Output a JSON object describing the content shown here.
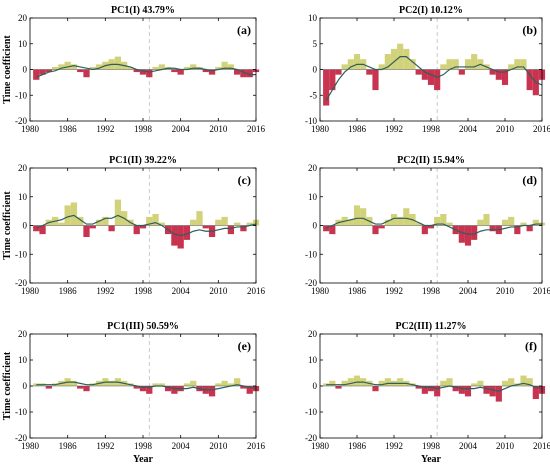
{
  "figure": {
    "ylabel": "Time coefficient",
    "xlabel": "Year"
  },
  "colors": {
    "positive": "#d2d27a",
    "negative": "#c8334f",
    "smooth": "#2f5f5a",
    "divider": "#bdbdbd"
  },
  "chart_data": [
    {
      "type": "bar",
      "title": "PC1(I) 43.79%",
      "letter": "(a)",
      "ylabel": "Time coefficient",
      "xlim": [
        1980,
        2016
      ],
      "ylim": [
        -20,
        20
      ],
      "yticks": [
        -20,
        -10,
        0,
        10,
        20
      ],
      "xticks": [
        1980,
        1986,
        1992,
        1998,
        2004,
        2010,
        2016
      ],
      "divider_year": 1999,
      "x": [
        1981,
        1982,
        1983,
        1984,
        1985,
        1986,
        1987,
        1988,
        1989,
        1990,
        1991,
        1992,
        1993,
        1994,
        1995,
        1996,
        1997,
        1998,
        1999,
        2000,
        2001,
        2002,
        2003,
        2004,
        2005,
        2006,
        2007,
        2008,
        2009,
        2010,
        2011,
        2012,
        2013,
        2014,
        2015,
        2016
      ],
      "values": [
        -4,
        -2,
        -1,
        1,
        2,
        3,
        2,
        -1,
        -3,
        1,
        2,
        3,
        4,
        5,
        3,
        1,
        -1,
        -2,
        -3,
        1,
        2,
        1,
        -1,
        -2,
        1,
        2,
        1,
        -1,
        -2,
        1,
        3,
        2,
        -2,
        -3,
        -3,
        -1
      ],
      "smooth": [
        -3,
        -2,
        -1,
        -0.5,
        0.5,
        1,
        1.5,
        1,
        0.5,
        0,
        0.5,
        1.5,
        2,
        2,
        1.5,
        1,
        0,
        -0.5,
        -1,
        -0.5,
        0,
        0.5,
        0.5,
        0,
        0,
        0.5,
        0.5,
        0,
        -0.5,
        0,
        0.5,
        0.5,
        0,
        -1,
        -2,
        -2
      ]
    },
    {
      "type": "bar",
      "title": "PC2(I) 10.12%",
      "letter": "(b)",
      "ylabel": "",
      "xlim": [
        1980,
        2016
      ],
      "ylim": [
        -10,
        10
      ],
      "yticks": [
        -10,
        -5,
        0,
        5,
        10
      ],
      "xticks": [
        1980,
        1986,
        1992,
        1998,
        2004,
        2010,
        2016
      ],
      "divider_year": 1999,
      "x": [
        1981,
        1982,
        1983,
        1984,
        1985,
        1986,
        1987,
        1988,
        1989,
        1990,
        1991,
        1992,
        1993,
        1994,
        1995,
        1996,
        1997,
        1998,
        1999,
        2000,
        2001,
        2002,
        2003,
        2004,
        2005,
        2006,
        2007,
        2008,
        2009,
        2010,
        2011,
        2012,
        2013,
        2014,
        2015,
        2016
      ],
      "values": [
        -7,
        -4,
        -1,
        1,
        2,
        3,
        2,
        -1,
        -4,
        1,
        3,
        4,
        5,
        4,
        2,
        -1,
        -2,
        -3,
        -4,
        1,
        2,
        2,
        -1,
        2,
        3,
        2,
        1,
        -1,
        -2,
        -3,
        1,
        2,
        2,
        -4,
        -5,
        -2
      ],
      "smooth": [
        -6,
        -4,
        -2,
        -0.5,
        0.5,
        1,
        1,
        0.5,
        0,
        0,
        0.5,
        1.5,
        2.5,
        2.5,
        1.5,
        0.5,
        -0.5,
        -1,
        -1.5,
        -1,
        0,
        0.5,
        0.5,
        0.5,
        0.5,
        1,
        0.5,
        0,
        -0.5,
        -0.5,
        0,
        0.5,
        0.5,
        -1,
        -2.5,
        -3
      ]
    },
    {
      "type": "bar",
      "title": "PC1(II) 39.22%",
      "letter": "(c)",
      "ylabel": "Time coefficient",
      "xlim": [
        1980,
        2016
      ],
      "ylim": [
        -20,
        20
      ],
      "yticks": [
        -20,
        -10,
        0,
        10,
        20
      ],
      "xticks": [
        1980,
        1986,
        1992,
        1998,
        2004,
        2010,
        2016
      ],
      "divider_year": 1999,
      "x": [
        1981,
        1982,
        1983,
        1984,
        1985,
        1986,
        1987,
        1988,
        1989,
        1990,
        1991,
        1992,
        1993,
        1994,
        1995,
        1996,
        1997,
        1998,
        1999,
        2000,
        2001,
        2002,
        2003,
        2004,
        2005,
        2006,
        2007,
        2008,
        2009,
        2010,
        2011,
        2012,
        2013,
        2014,
        2015,
        2016
      ],
      "values": [
        -2,
        -3,
        2,
        3,
        1,
        7,
        8,
        3,
        -4,
        -1,
        2,
        3,
        -2,
        9,
        5,
        2,
        -3,
        -1,
        3,
        4,
        1,
        -3,
        -7,
        -8,
        -5,
        2,
        5,
        -1,
        -4,
        2,
        3,
        -3,
        1,
        -2,
        1,
        2
      ],
      "smooth": [
        -1,
        0,
        1,
        1.5,
        2,
        3,
        3.5,
        2,
        0.5,
        0.5,
        1.5,
        2.5,
        2.5,
        3.5,
        2.5,
        1,
        0,
        0,
        0.5,
        1,
        0,
        -1.5,
        -3,
        -3.5,
        -3,
        -2,
        -1.5,
        -2,
        -2,
        -1.5,
        -1,
        -1,
        -0.5,
        -0.5,
        0,
        0.5
      ]
    },
    {
      "type": "bar",
      "title": "PC2(II) 15.94%",
      "letter": "(d)",
      "ylabel": "",
      "xlim": [
        1980,
        2016
      ],
      "ylim": [
        -20,
        20
      ],
      "yticks": [
        -20,
        -10,
        0,
        10,
        20
      ],
      "xticks": [
        1980,
        1986,
        1992,
        1998,
        2004,
        2010,
        2016
      ],
      "divider_year": 1999,
      "x": [
        1981,
        1982,
        1983,
        1984,
        1985,
        1986,
        1987,
        1988,
        1989,
        1990,
        1991,
        1992,
        1993,
        1994,
        1995,
        1996,
        1997,
        1998,
        1999,
        2000,
        2001,
        2002,
        2003,
        2004,
        2005,
        2006,
        2007,
        2008,
        2009,
        2010,
        2011,
        2012,
        2013,
        2014,
        2015,
        2016
      ],
      "values": [
        -2,
        -3,
        2,
        3,
        2,
        7,
        6,
        3,
        -3,
        -1,
        2,
        4,
        3,
        6,
        4,
        1,
        -3,
        -1,
        3,
        4,
        1,
        -3,
        -6,
        -7,
        -5,
        2,
        4,
        -2,
        -3,
        2,
        3,
        -3,
        1,
        -2,
        2,
        1
      ],
      "smooth": [
        -1,
        0,
        1,
        1.5,
        2,
        2.5,
        2.5,
        1.5,
        0.5,
        0.5,
        1.5,
        2.5,
        2.5,
        2.5,
        2,
        1,
        0,
        0,
        0.5,
        0.5,
        -0.5,
        -1.5,
        -2.5,
        -3,
        -3,
        -2,
        -1.5,
        -1.5,
        -1.5,
        -1,
        -0.5,
        -0.5,
        0,
        0,
        0.5,
        0.5
      ]
    },
    {
      "type": "bar",
      "title": "PC1(III) 50.59%",
      "letter": "(e)",
      "ylabel": "Time coefficient",
      "xlim": [
        1980,
        2016
      ],
      "ylim": [
        -20,
        20
      ],
      "yticks": [
        -20,
        -10,
        0,
        10,
        20
      ],
      "xticks": [
        1980,
        1986,
        1992,
        1998,
        2004,
        2010,
        2016
      ],
      "divider_year": 1999,
      "x": [
        1981,
        1982,
        1983,
        1984,
        1985,
        1986,
        1987,
        1988,
        1989,
        1990,
        1991,
        1992,
        1993,
        1994,
        1995,
        1996,
        1997,
        1998,
        1999,
        2000,
        2001,
        2002,
        2003,
        2004,
        2005,
        2006,
        2007,
        2008,
        2009,
        2010,
        2011,
        2012,
        2013,
        2014,
        2015,
        2016
      ],
      "values": [
        1,
        1,
        -1,
        1,
        2,
        3,
        2,
        -1,
        -2,
        1,
        2,
        3,
        2,
        3,
        2,
        1,
        -1,
        -2,
        -3,
        1,
        1,
        -2,
        -3,
        -2,
        1,
        2,
        -2,
        -3,
        -4,
        1,
        2,
        1,
        3,
        -1,
        -3,
        -2
      ],
      "smooth": [
        0.5,
        0.5,
        0.5,
        0.5,
        1,
        1.5,
        1.5,
        1,
        0.5,
        0.5,
        1,
        1.5,
        1.5,
        1.5,
        1,
        0.5,
        0,
        -0.5,
        -0.5,
        0,
        0,
        -0.5,
        -1,
        -1,
        -1,
        -0.5,
        -1,
        -1.5,
        -1.5,
        -1,
        -0.5,
        0,
        0.5,
        0,
        -0.5,
        -1
      ]
    },
    {
      "type": "bar",
      "title": "PC2(III) 11.27%",
      "letter": "(f)",
      "ylabel": "",
      "xlim": [
        1980,
        2016
      ],
      "ylim": [
        -20,
        20
      ],
      "yticks": [
        -20,
        -10,
        0,
        10,
        20
      ],
      "xticks": [
        1980,
        1986,
        1992,
        1998,
        2004,
        2010,
        2016
      ],
      "divider_year": 1999,
      "x": [
        1981,
        1982,
        1983,
        1984,
        1985,
        1986,
        1987,
        1988,
        1989,
        1990,
        1991,
        1992,
        1993,
        1994,
        1995,
        1996,
        1997,
        1998,
        1999,
        2000,
        2001,
        2002,
        2003,
        2004,
        2005,
        2006,
        2007,
        2008,
        2009,
        2010,
        2011,
        2012,
        2013,
        2014,
        2015,
        2016
      ],
      "values": [
        1,
        2,
        -1,
        2,
        3,
        4,
        3,
        2,
        -2,
        2,
        3,
        2,
        3,
        2,
        1,
        -1,
        -3,
        -2,
        -4,
        2,
        3,
        -2,
        -3,
        -4,
        1,
        2,
        -3,
        -4,
        -6,
        2,
        3,
        1,
        4,
        3,
        -5,
        -3
      ],
      "smooth": [
        0.5,
        0.5,
        0.5,
        0.5,
        1,
        1.5,
        1.5,
        1,
        0.5,
        0.5,
        1,
        1,
        1,
        1,
        0.5,
        0,
        -0.5,
        -0.5,
        -1,
        -0.5,
        0,
        -0.5,
        -1,
        -1,
        -1,
        -0.5,
        -1,
        -1.5,
        -2,
        -1,
        0,
        0.5,
        1,
        0.5,
        -0.5,
        -1
      ]
    }
  ]
}
